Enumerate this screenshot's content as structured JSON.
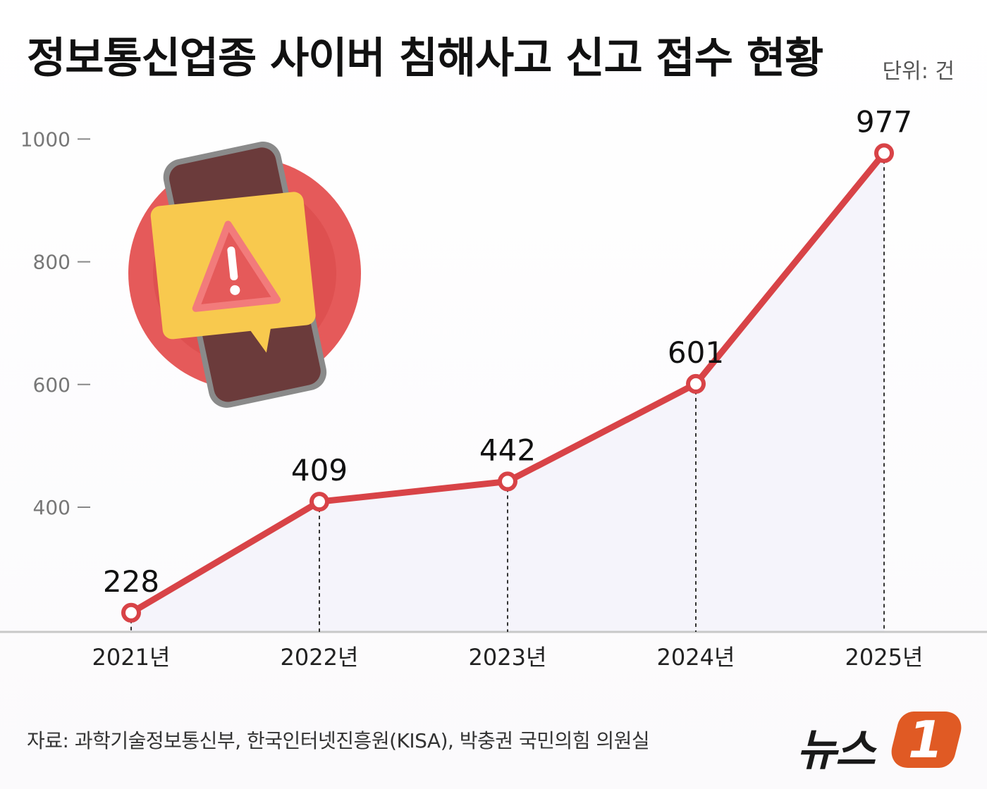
{
  "header": {
    "title": "정보통신업종 사이버 침해사고 신고 접수 현황",
    "unit": "단위: 건"
  },
  "footer": {
    "source": "자료: 과학기술정보통신부, 한국인터넷진흥원(KISA), 박충권 국민의힘 의원실",
    "logo_text": "뉴스",
    "logo_badge": "1"
  },
  "colors": {
    "line": "#d84347",
    "area": "#f5f4fb",
    "axis": "#bbbbbb"
  },
  "illustration": {
    "icon": "phone-warning-alert-icon"
  },
  "chart_data": {
    "type": "line",
    "title": "정보통신업종 사이버 침해사고 신고 접수 현황",
    "unit": "단위: 건",
    "x": [
      "2021년",
      "2022년",
      "2023년",
      "2024년",
      "2025년"
    ],
    "series": [
      {
        "values": [
          228,
          409,
          442,
          601,
          977
        ]
      }
    ],
    "data_labels": [
      "228",
      "409",
      "442",
      "601",
      "977"
    ],
    "y_ticks": [
      400,
      600,
      800,
      1000
    ],
    "y_tick_labels": [
      "400",
      "600",
      "800",
      "1000"
    ],
    "ylim": [
      200,
      1000
    ],
    "grid": false
  }
}
